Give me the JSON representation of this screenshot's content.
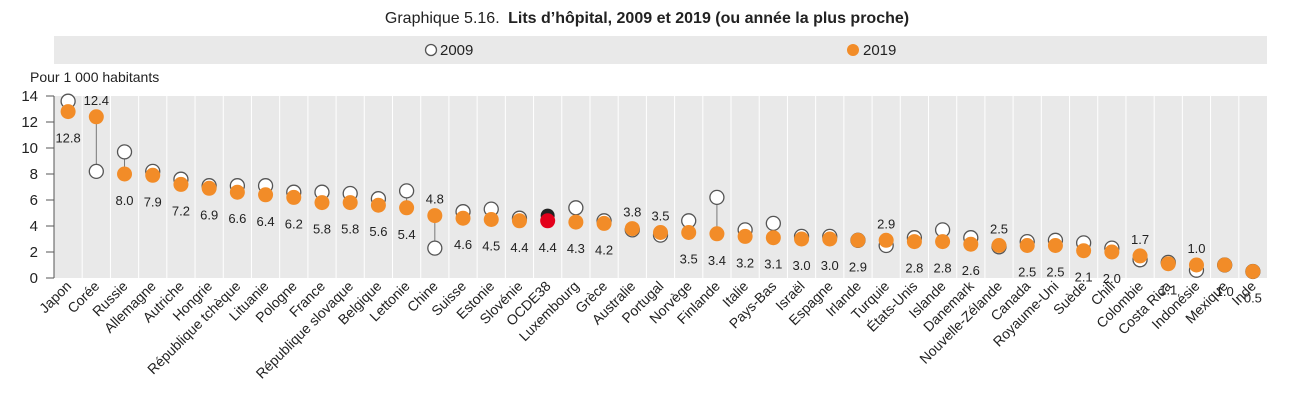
{
  "chart_data": {
    "type": "scatter",
    "title_prefix": "Graphique 5.16.",
    "title": "Lits d’hôpital, 2009 et 2019 (ou année la plus proche)",
    "unit_label": "Pour 1 000 habitants",
    "ylim": [
      0,
      14
    ],
    "yticks": [
      "0",
      "2",
      "4",
      "6",
      "8",
      "10",
      "12",
      "14"
    ],
    "grid": "vertical",
    "legend_position": "top",
    "legend": [
      "2009",
      "2019"
    ],
    "categories": [
      "Japon",
      "Corée",
      "Russie",
      "Allemagne",
      "Autriche",
      "Hongrie",
      "République tchèque",
      "Lituanie",
      "Pologne",
      "France",
      "République slovaque",
      "Belgique",
      "Lettonie",
      "Chine",
      "Suisse",
      "Estonie",
      "Slovénie",
      "OCDE38",
      "Luxembourg",
      "Grèce",
      "Australie",
      "Portugal",
      "Norvège",
      "Finlande",
      "Italie",
      "Pays-Bas",
      "Israël",
      "Espagne",
      "Irlande",
      "Turquie",
      "États-Unis",
      "Islande",
      "Danemark",
      "Nouvelle-Zélande",
      "Canada",
      "Royaume-Uni",
      "Suède",
      "Chili",
      "Colombie",
      "Costa Rica",
      "Indonésie",
      "Mexique",
      "Inde"
    ],
    "series": [
      {
        "name": "2009",
        "values": [
          13.6,
          8.2,
          9.7,
          8.2,
          7.6,
          7.1,
          7.1,
          7.1,
          6.6,
          6.6,
          6.5,
          6.1,
          6.7,
          2.3,
          5.1,
          5.3,
          4.6,
          4.8,
          5.4,
          4.4,
          3.7,
          3.3,
          4.4,
          6.2,
          3.7,
          4.2,
          3.2,
          3.2,
          2.9,
          2.5,
          3.1,
          3.7,
          3.1,
          2.4,
          2.8,
          2.9,
          2.7,
          2.3,
          1.4,
          1.2,
          0.6,
          1.0,
          0.5
        ]
      },
      {
        "name": "2019",
        "values": [
          12.8,
          12.4,
          8.0,
          7.9,
          7.2,
          6.9,
          6.6,
          6.4,
          6.2,
          5.8,
          5.8,
          5.6,
          5.4,
          4.8,
          4.6,
          4.5,
          4.4,
          4.4,
          4.3,
          4.2,
          3.8,
          3.5,
          3.5,
          3.4,
          3.2,
          3.1,
          3.0,
          3.0,
          2.9,
          2.9,
          2.8,
          2.8,
          2.6,
          2.5,
          2.5,
          2.5,
          2.1,
          2.0,
          1.7,
          1.1,
          1.0,
          1.0,
          0.5
        ]
      }
    ],
    "data_labels": [
      "12.8",
      "12.4",
      "8.0",
      "7.9",
      "7.2",
      "6.9",
      "6.6",
      "6.4",
      "6.2",
      "5.8",
      "5.8",
      "5.6",
      "5.4",
      "4.8",
      "4.6",
      "4.5",
      "4.4",
      "4.4",
      "4.3",
      "4.2",
      "3.8",
      "3.5",
      "3.5",
      "3.4",
      "3.2",
      "3.1",
      "3.0",
      "3.0",
      "2.9",
      "2.9",
      "2.8",
      "2.8",
      "2.6",
      "2.5",
      "2.5",
      "2.5",
      "2.1",
      "2.0",
      "1.7",
      "1.1",
      "1.0",
      "1.0",
      "0.5"
    ],
    "highlight_category": "OCDE38",
    "colors": {
      "marker_2019": "#F28C28",
      "marker_2009_fill": "#ffffff",
      "marker_2009_stroke": "#555555",
      "highlight_2019": "#E3001B",
      "highlight_2009": "#222222",
      "plot_bg": "#E9E9E9",
      "legend_bg": "#E9E9E9",
      "grid": "#ffffff",
      "connector": "#777777"
    }
  }
}
